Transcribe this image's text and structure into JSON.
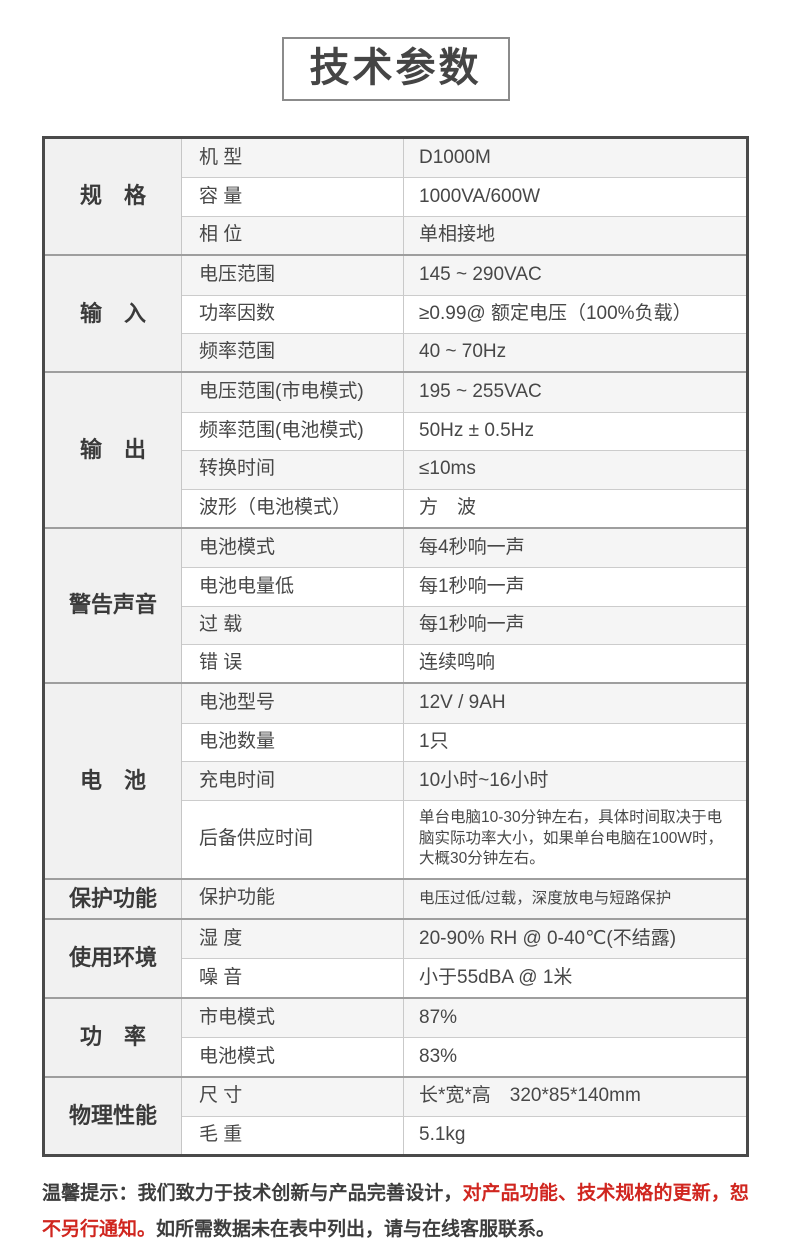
{
  "title": "技术参数",
  "table": {
    "sections": [
      {
        "name": "规　格",
        "rows": [
          {
            "label": "机 型",
            "value": "D1000M"
          },
          {
            "label": "容 量",
            "value": "1000VA/600W"
          },
          {
            "label": "相 位",
            "value": "单相接地"
          }
        ]
      },
      {
        "name": "输　入",
        "rows": [
          {
            "label": "电压范围",
            "value": "145 ~ 290VAC"
          },
          {
            "label": "功率因数",
            "value": "≥0.99@ 额定电压（100%负载）"
          },
          {
            "label": "频率范围",
            "value": "40 ~ 70Hz"
          }
        ]
      },
      {
        "name": "输　出",
        "rows": [
          {
            "label": "电压范围(市电模式)",
            "value": "195 ~ 255VAC"
          },
          {
            "label": "频率范围(电池模式)",
            "value": "50Hz ± 0.5Hz"
          },
          {
            "label": "转换时间",
            "value": "≤10ms"
          },
          {
            "label": "波形（电池模式）",
            "value": "方　波"
          }
        ]
      },
      {
        "name": "警告声音",
        "rows": [
          {
            "label": "电池模式",
            "value": "每4秒响一声"
          },
          {
            "label": "电池电量低",
            "value": "每1秒响一声"
          },
          {
            "label": "过 载",
            "value": "每1秒响一声"
          },
          {
            "label": "错 误",
            "value": "连续鸣响"
          }
        ]
      },
      {
        "name": "电　池",
        "rows": [
          {
            "label": "电池型号",
            "value": "12V / 9AH"
          },
          {
            "label": "电池数量",
            "value": "1只"
          },
          {
            "label": "充电时间",
            "value": "10小时~16小时"
          },
          {
            "label": "后备供应时间",
            "value": "单台电脑10-30分钟左右，具体时间取决于电脑实际功率大小，如果单台电脑在100W时，大概30分钟左右。",
            "tall": true,
            "small": true
          }
        ]
      },
      {
        "name": "保护功能",
        "rows": [
          {
            "label": "保护功能",
            "value": "电压过低/过载，深度放电与短路保护",
            "small": true
          }
        ]
      },
      {
        "name": "使用环境",
        "rows": [
          {
            "label": "湿 度",
            "value": "20-90% RH @ 0-40℃(不结露)"
          },
          {
            "label": "噪 音",
            "value": "小于55dBA @ 1米"
          }
        ]
      },
      {
        "name": "功　率",
        "rows": [
          {
            "label": "市电模式",
            "value": "87%"
          },
          {
            "label": "电池模式",
            "value": "83%"
          }
        ]
      },
      {
        "name": "物理性能",
        "rows": [
          {
            "label": "尺 寸",
            "value": "长*宽*高　320*85*140mm"
          },
          {
            "label": "毛 重",
            "value": "5.1kg"
          }
        ]
      }
    ]
  },
  "footer": {
    "prefix": "温馨提示：",
    "part1": "我们致力于技术创新与产品完善设计，",
    "highlight": "对产品功能、技术规格的更新，恕不另行通知。",
    "part2": "如所需数据未在表中列出，请与在线客服联系。",
    "highlight_color": "#d0261f"
  }
}
